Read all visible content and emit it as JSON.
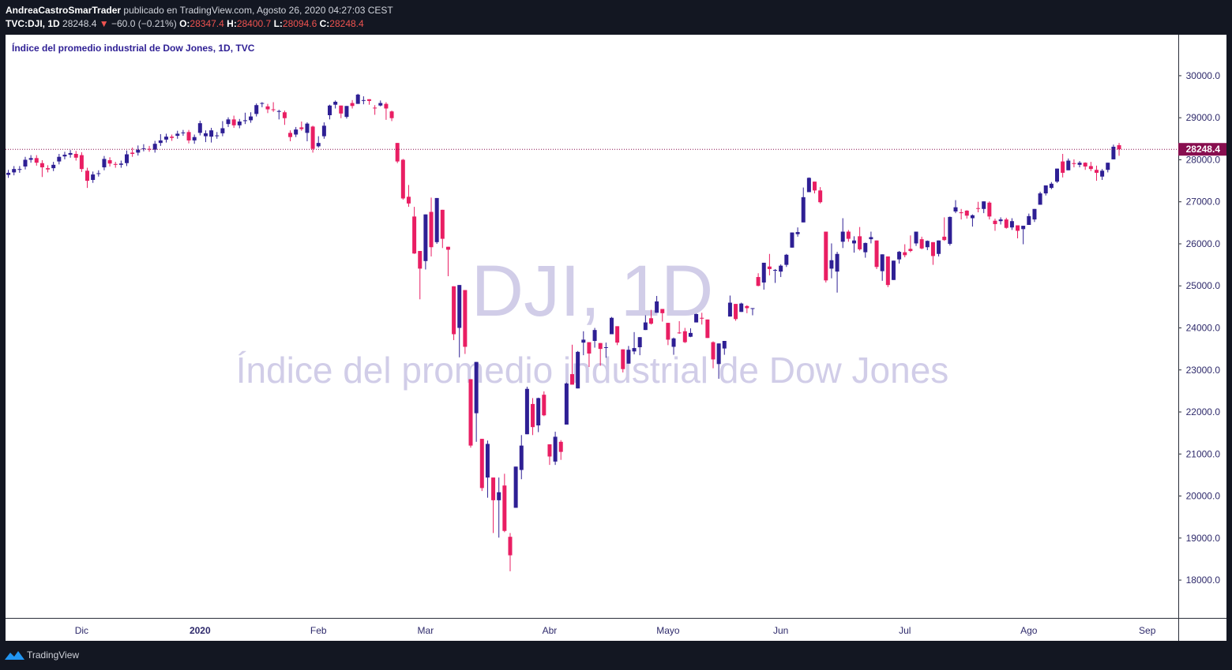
{
  "header": {
    "author": "AndreaCastroSmarTrader",
    "published": "publicado en TradingView.com, Agosto 26, 2020 04:27:03 CEST",
    "symbol": "TVC:DJI, 1D",
    "change_arrow": "▼",
    "change": "−60.0 (−0.21%)",
    "ohlc_labels": [
      "O:",
      "H:",
      "L:",
      "C:"
    ]
  },
  "footer": {
    "brand": "TradingView"
  },
  "chart_data": {
    "type": "candlestick",
    "title": "Índice del promedio industrial de Dow Jones, 1D, TVC",
    "watermark_symbol": "DJI, 1D",
    "watermark_name": "Índice del promedio industrial de Dow Jones",
    "up_color": "#2e1f94",
    "down_color": "#e91e63",
    "price_line_color": "#880e4f",
    "ylim": [
      17100,
      30975
    ],
    "yticks": [
      {
        "value": 18000,
        "label": "18000.0"
      },
      {
        "value": 19000,
        "label": "19000.0"
      },
      {
        "value": 20000,
        "label": "20000.0"
      },
      {
        "value": 21000,
        "label": "21000.0"
      },
      {
        "value": 22000,
        "label": "22000.0"
      },
      {
        "value": 23000,
        "label": "23000.0"
      },
      {
        "value": 24000,
        "label": "24000.0"
      },
      {
        "value": 25000,
        "label": "25000.0"
      },
      {
        "value": 26000,
        "label": "26000.0"
      },
      {
        "value": 27000,
        "label": "27000.0"
      },
      {
        "value": 28000,
        "label": "28000.0"
      },
      {
        "value": 29000,
        "label": "29000.0"
      },
      {
        "value": 30000,
        "label": "30000.0"
      }
    ],
    "categories": [
      null,
      null,
      null,
      null,
      null,
      null,
      null,
      null,
      null,
      null,
      null,
      null,
      null,
      "Dic",
      null,
      null,
      null,
      null,
      null,
      null,
      null,
      null,
      null,
      null,
      null,
      null,
      null,
      null,
      null,
      null,
      null,
      null,
      null,
      null,
      "2020",
      null,
      null,
      null,
      null,
      null,
      null,
      null,
      null,
      null,
      null,
      null,
      null,
      null,
      null,
      null,
      null,
      null,
      null,
      null,
      null,
      "Feb",
      null,
      null,
      null,
      null,
      null,
      null,
      null,
      null,
      null,
      null,
      null,
      null,
      null,
      null,
      null,
      null,
      null,
      null,
      "Mar",
      null,
      null,
      null,
      null,
      null,
      null,
      null,
      null,
      null,
      null,
      null,
      null,
      null,
      null,
      null,
      null,
      null,
      null,
      null,
      null,
      null,
      "Abr",
      null,
      null,
      null,
      null,
      null,
      null,
      null,
      null,
      null,
      null,
      null,
      null,
      null,
      null,
      null,
      null,
      null,
      null,
      null,
      null,
      "Mayo",
      null,
      null,
      null,
      null,
      null,
      null,
      null,
      null,
      null,
      null,
      null,
      null,
      null,
      null,
      null,
      null,
      null,
      null,
      null,
      "Jun",
      null,
      null,
      null,
      null,
      null,
      null,
      null,
      null,
      null,
      null,
      null,
      null,
      null,
      null,
      null,
      null,
      null,
      null,
      null,
      null,
      null,
      "Jul",
      null,
      null,
      null,
      null,
      null,
      null,
      null,
      null,
      null,
      null,
      null,
      null,
      null,
      null,
      null,
      null,
      null,
      null,
      null,
      null,
      null,
      "Ago",
      null,
      null,
      null,
      null,
      null,
      null,
      null,
      null,
      null,
      null,
      null,
      null,
      null,
      null,
      null,
      null,
      null,
      null,
      null,
      null,
      "Sep",
      null,
      null,
      null,
      null,
      null
    ],
    "open": [
      27640,
      27700,
      27760,
      27840,
      28000,
      28040,
      27920,
      27800,
      27800,
      27960,
      28080,
      28120,
      28140,
      28110,
      27740,
      27520,
      27670,
      27820,
      27990,
      27900,
      27880,
      27920,
      28170,
      28170,
      28270,
      28260,
      28240,
      28400,
      28480,
      28550,
      28570,
      28640,
      28660,
      28460,
      28640,
      28560,
      28550,
      28580,
      28630,
      28850,
      28960,
      28820,
      28920,
      28940,
      29090,
      29340,
      29270,
      29200,
      29140,
      29130,
      28640,
      28600,
      28770,
      28640,
      28790,
      28320,
      28560,
      29060,
      29310,
      29290,
      29020,
      29350,
      29330,
      29420,
      29440,
      29240,
      29290,
      29330,
      29150,
      28400,
      28000,
      27120,
      26650,
      25830,
      25590,
      26760,
      26040,
      26810,
      25930,
      24990,
      24000,
      24900,
      22780,
      21970,
      21360,
      20440,
      20440,
      19900,
      20250,
      19030,
      19720,
      20620,
      21470,
      22190,
      21680,
      22410,
      21230,
      20820,
      21290,
      21700,
      22900,
      22560,
      23650,
      23660,
      23690,
      23640,
      23540,
      23850,
      24040,
      23490,
      23150,
      23440,
      23540,
      23950,
      24230,
      24360,
      24450,
      24120,
      23550,
      23890,
      23920,
      23790,
      24130,
      24240,
      24200,
      23660,
      23140,
      23510,
      24270,
      24570,
      24380,
      24520,
      24470,
      25210,
      25080,
      25460,
      25370,
      25340,
      25500,
      25910,
      26230,
      26510,
      27230,
      27480,
      27270,
      26290,
      25410,
      25340,
      26050,
      26290,
      26010,
      26180,
      25800,
      26110,
      26080,
      25350,
      25700,
      25140,
      25630,
      25800,
      25880,
      26010,
      26110,
      25920,
      26040,
      25760,
      26170,
      26000,
      26770,
      26750,
      26790,
      26610,
      26850,
      26830,
      26980,
      26550,
      26540,
      26580,
      26390,
      26440,
      26350,
      26450,
      26580,
      26930,
      27200,
      27330,
      27480,
      27960,
      27750,
      27920,
      27880,
      27930,
      27850,
      27760,
      27600,
      27760,
      28010,
      28347.4,
      null,
      null,
      null,
      null,
      null,
      null,
      null,
      null,
      null,
      null
    ],
    "high": [
      27760,
      27850,
      27850,
      28070,
      28110,
      28110,
      27990,
      27870,
      27950,
      28140,
      28190,
      28230,
      28210,
      28180,
      27810,
      27720,
      27750,
      28090,
      28060,
      27950,
      27980,
      28220,
      28290,
      28340,
      28370,
      28330,
      28450,
      28610,
      28620,
      28600,
      28690,
      28710,
      28710,
      28600,
      28930,
      28700,
      28760,
      28660,
      28920,
      29010,
      29050,
      28970,
      29120,
      29130,
      29340,
      29370,
      29330,
      29370,
      29190,
      29170,
      28700,
      28780,
      28910,
      28890,
      28810,
      28560,
      28890,
      29310,
      29410,
      29290,
      29280,
      29420,
      29570,
      29510,
      29440,
      29300,
      29410,
      29370,
      29170,
      28400,
      28020,
      27400,
      26880,
      25830,
      26700,
      27100,
      27090,
      26810,
      25930,
      24990,
      25020,
      24900,
      22780,
      23190,
      21360,
      21320,
      20440,
      20440,
      20530,
      19120,
      20700,
      21450,
      22600,
      22330,
      22340,
      22490,
      21230,
      21530,
      21330,
      22700,
      23600,
      23450,
      23920,
      23660,
      24000,
      23640,
      23650,
      24260,
      24040,
      23490,
      23570,
      23900,
      23780,
      24300,
      24430,
      24760,
      24450,
      24120,
      23770,
      24160,
      24000,
      23990,
      24340,
      24360,
      24200,
      23680,
      23630,
      23690,
      24770,
      24570,
      24600,
      24540,
      24470,
      25300,
      25550,
      25760,
      25400,
      25510,
      25760,
      26270,
      26390,
      27340,
      27580,
      27480,
      27350,
      26290,
      26010,
      25810,
      26610,
      26330,
      26180,
      26400,
      26030,
      26290,
      26080,
      25750,
      25700,
      25600,
      25830,
      25990,
      26200,
      26290,
      26170,
      26080,
      26040,
      26080,
      26630,
      26650,
      27040,
      26830,
      26800,
      26700,
      27000,
      27010,
      27010,
      26600,
      26630,
      26620,
      26610,
      26440,
      26430,
      26720,
      26830,
      27240,
      27390,
      27470,
      27790,
      28140,
      28030,
      28010,
      27970,
      27940,
      27950,
      27860,
      27780,
      27930,
      28360,
      28400.7,
      null,
      null,
      null,
      null,
      null,
      null,
      null,
      null,
      null,
      null
    ],
    "low": [
      27570,
      27630,
      27690,
      27770,
      27930,
      27860,
      27590,
      27700,
      27730,
      27890,
      28010,
      28050,
      27980,
      27710,
      27330,
      27450,
      27600,
      27750,
      27840,
      27810,
      27810,
      27850,
      28070,
      28100,
      28200,
      28190,
      28170,
      28330,
      28410,
      28450,
      28500,
      28570,
      28390,
      28380,
      28580,
      28420,
      28410,
      28500,
      28560,
      28780,
      28760,
      28750,
      28850,
      28880,
      29030,
      29250,
      29110,
      29140,
      28960,
      28830,
      28440,
      28540,
      28690,
      28440,
      28170,
      28290,
      28500,
      28960,
      29220,
      28990,
      28980,
      29220,
      29330,
      29320,
      29310,
      29070,
      29270,
      28950,
      28920,
      27920,
      27050,
      26880,
      25760,
      24680,
      25390,
      25700,
      26000,
      25900,
      25230,
      23710,
      23300,
      23380,
      21150,
      21290,
      20120,
      19960,
      19120,
      19010,
      19140,
      18210,
      19720,
      20400,
      21470,
      21450,
      21520,
      21900,
      20740,
      20740,
      20860,
      21700,
      22650,
      22560,
      23350,
      23070,
      23530,
      23100,
      23290,
      23850,
      23590,
      22940,
      23150,
      23370,
      23350,
      23950,
      24080,
      24360,
      24150,
      23590,
      23360,
      23860,
      23640,
      23780,
      24130,
      24080,
      23760,
      23040,
      22790,
      23360,
      24270,
      24170,
      24380,
      24350,
      24300,
      24990,
      24910,
      25250,
      25070,
      25210,
      25450,
      25910,
      26170,
      26510,
      27230,
      27200,
      26960,
      25080,
      25180,
      24840,
      25900,
      26050,
      25790,
      25840,
      25670,
      26010,
      25400,
      25120,
      24970,
      25140,
      25530,
      25680,
      25800,
      25950,
      25870,
      25850,
      25500,
      25700,
      26070,
      25960,
      26730,
      26580,
      26600,
      26410,
      26750,
      26730,
      26580,
      26310,
      26460,
      26360,
      26330,
      26130,
      25990,
      26450,
      26520,
      26930,
      27150,
      27300,
      27450,
      27580,
      27750,
      27820,
      27820,
      27760,
      27730,
      27500,
      27520,
      27700,
      28010,
      28094.6,
      null,
      null,
      null,
      null,
      null,
      null,
      null,
      null,
      null,
      null
    ],
    "close": [
      27690,
      27780,
      27780,
      28000,
      28040,
      27930,
      27820,
      27770,
      27880,
      28070,
      28120,
      28160,
      28050,
      27780,
      27500,
      27650,
      27680,
      28020,
      27910,
      27880,
      27910,
      28130,
      28140,
      28240,
      28270,
      28240,
      28380,
      28460,
      28550,
      28520,
      28620,
      28650,
      28460,
      28540,
      28870,
      28630,
      28700,
      28580,
      28750,
      28960,
      28820,
      28910,
      28940,
      29030,
      29300,
      29350,
      29200,
      29190,
      29160,
      28990,
      28540,
      28720,
      28730,
      28860,
      28260,
      28400,
      28810,
      29290,
      29380,
      29100,
      29280,
      29280,
      29550,
      29420,
      29400,
      29230,
      29350,
      29220,
      28990,
      27960,
      27080,
      26960,
      25770,
      25410,
      26700,
      25920,
      27090,
      26120,
      25860,
      23850,
      25020,
      23550,
      21200,
      23190,
      20190,
      21240,
      19900,
      20090,
      19170,
      18590,
      20700,
      21200,
      22550,
      21640,
      22330,
      21920,
      20940,
      21410,
      21050,
      22680,
      22650,
      23430,
      23720,
      23390,
      23950,
      23500,
      23540,
      24240,
      23650,
      23020,
      23480,
      23520,
      23780,
      24130,
      24100,
      24630,
      24350,
      23720,
      23750,
      23880,
      23660,
      23880,
      24330,
      24220,
      23760,
      23250,
      23630,
      23690,
      24600,
      24210,
      24580,
      24470,
      24470,
      25000,
      25550,
      25400,
      25380,
      25480,
      25740,
      26270,
      26280,
      27110,
      27570,
      27270,
      26990,
      25130,
      25610,
      25760,
      26290,
      26120,
      26080,
      25870,
      26020,
      26160,
      25450,
      25750,
      25020,
      25600,
      25810,
      25730,
      25830,
      26290,
      25890,
      26070,
      25710,
      26080,
      26090,
      26640,
      26870,
      26730,
      26670,
      26680,
      26840,
      27010,
      26650,
      26470,
      26580,
      26380,
      26540,
      26310,
      26430,
      26660,
      26830,
      27200,
      27390,
      27430,
      27790,
      27690,
      27980,
      27900,
      27930,
      27840,
      27780,
      27690,
      27740,
      27930,
      28310,
      28248.4,
      null,
      null,
      null,
      null,
      null,
      null,
      null,
      null,
      null,
      null
    ]
  }
}
